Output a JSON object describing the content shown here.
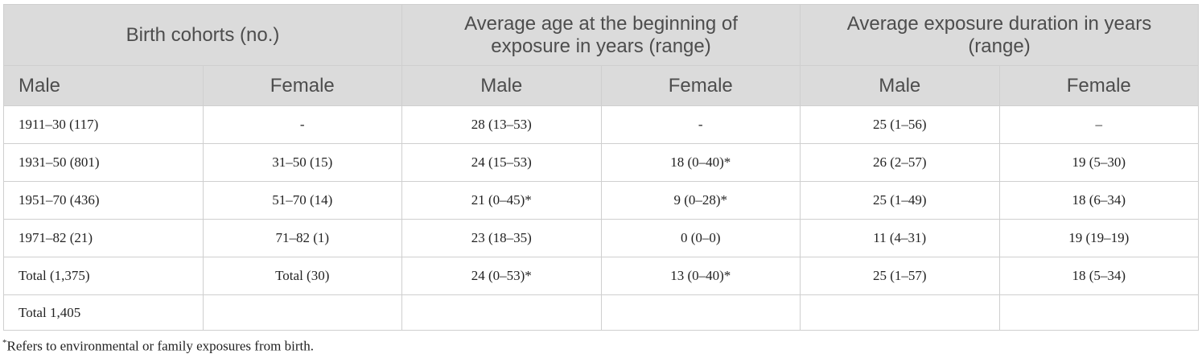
{
  "header": {
    "group_headers": [
      "Birth cohorts (no.)",
      "Average age at the beginning of exposure in years (range)",
      "Average exposure duration in years (range)"
    ],
    "sub_headers": [
      "Male",
      "Female",
      "Male",
      "Female",
      "Male",
      "Female"
    ]
  },
  "table": {
    "rows": [
      [
        "1911–30 (117)",
        "-",
        "28 (13–53)",
        "-",
        "25 (1–56)",
        "–"
      ],
      [
        "1931–50 (801)",
        "31–50 (15)",
        "24 (15–53)",
        "18 (0–40)*",
        "26 (2–57)",
        "19 (5–30)"
      ],
      [
        "1951–70 (436)",
        "51–70 (14)",
        "21 (0–45)*",
        "9 (0–28)*",
        "25 (1–49)",
        "18 (6–34)"
      ],
      [
        "1971–82 (21)",
        "71–82 (1)",
        "23 (18–35)",
        "0 (0–0)",
        "11 (4–31)",
        "19 (19–19)"
      ],
      [
        "Total (1,375)",
        "Total (30)",
        "24 (0–53)*",
        "13 (0–40)*",
        "25 (1–57)",
        "18 (5–34)"
      ],
      [
        "Total 1,405"
      ]
    ]
  },
  "footnote": {
    "marker": "*",
    "text": "Refers to environmental or family exposures from birth."
  }
}
